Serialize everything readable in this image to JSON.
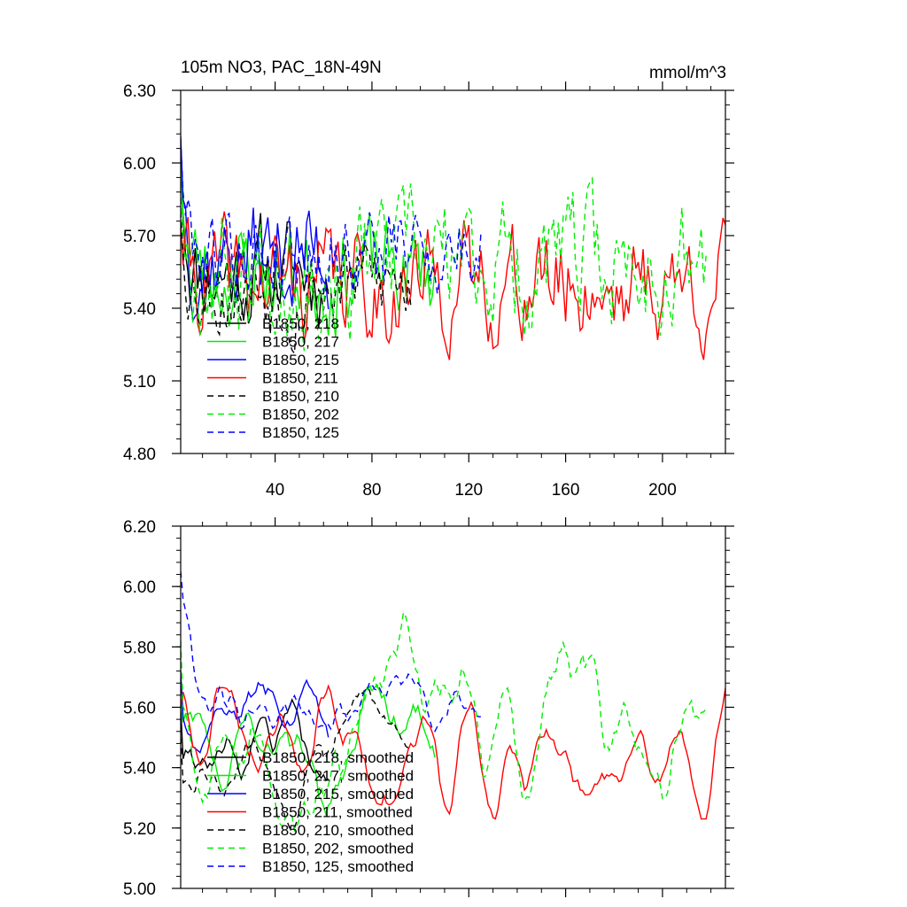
{
  "chart_data": [
    {
      "type": "line",
      "title": "105m NO3, PAC_18N-49N",
      "units_label": "mmol/m^3",
      "xlim": [
        1,
        226
      ],
      "ylim": [
        4.8,
        6.3
      ],
      "yticks": [
        "6.30",
        "6.00",
        "5.70",
        "5.40",
        "5.10",
        "4.80"
      ],
      "yticks_values": [
        6.3,
        6.0,
        5.7,
        5.4,
        5.1,
        4.8
      ],
      "xticks": [
        "40",
        "80",
        "120",
        "160",
        "200"
      ],
      "xticks_values": [
        40,
        80,
        120,
        160,
        200
      ],
      "series": [
        {
          "name": "B1850, 218",
          "label": "B1850, 218",
          "color": "#000000",
          "dash": "solid",
          "n": 62,
          "seed": 11,
          "start": 6.15,
          "mean": 5.55,
          "amp": 0.16,
          "lo": 5.02,
          "hi": 6.02
        },
        {
          "name": "B1850, 217",
          "label": "B1850, 217",
          "color": "#00ee00",
          "dash": "solid",
          "n": 106,
          "seed": 23,
          "start": 6.05,
          "mean": 5.55,
          "amp": 0.16,
          "lo": 4.88,
          "hi": 6.1
        },
        {
          "name": "B1850, 215",
          "label": "B1850, 215",
          "color": "#0000ff",
          "dash": "solid",
          "n": 62,
          "seed": 37,
          "start": 6.2,
          "mean": 5.62,
          "amp": 0.18,
          "lo": 5.0,
          "hi": 6.11
        },
        {
          "name": "B1850, 211",
          "label": "B1850, 211",
          "color": "#ff0000",
          "dash": "solid",
          "n": 226,
          "seed": 41,
          "start": 5.75,
          "mean": 5.5,
          "amp": 0.17,
          "lo": 5.08,
          "hi": 5.91
        },
        {
          "name": "B1850, 210",
          "label": "B1850, 210",
          "color": "#000000",
          "dash": "dashed",
          "n": 96,
          "seed": 53,
          "start": 5.8,
          "mean": 5.5,
          "amp": 0.15,
          "lo": 5.0,
          "hi": 5.84
        },
        {
          "name": "B1850, 202",
          "label": "B1850, 202",
          "color": "#00ee00",
          "dash": "dashed",
          "n": 218,
          "seed": 67,
          "start": 5.9,
          "mean": 5.58,
          "amp": 0.2,
          "lo": 4.95,
          "hi": 6.16
        },
        {
          "name": "B1850, 125",
          "label": "B1850, 125",
          "color": "#0000ff",
          "dash": "dashed",
          "n": 125,
          "seed": 79,
          "start": 6.1,
          "mean": 5.65,
          "amp": 0.14,
          "lo": 5.15,
          "hi": 6.1
        }
      ]
    },
    {
      "type": "line",
      "title": "",
      "units_label": "",
      "xlim": [
        1,
        226
      ],
      "ylim": [
        5.0,
        6.2
      ],
      "yticks": [
        "6.20",
        "6.00",
        "5.80",
        "5.60",
        "5.40",
        "5.20",
        "5.00"
      ],
      "yticks_values": [
        6.2,
        6.0,
        5.8,
        5.6,
        5.4,
        5.2,
        5.0
      ],
      "xticks": [],
      "xticks_values": [
        40,
        80,
        120,
        160,
        200
      ],
      "series": [
        {
          "name": "B1850, 218, smoothed",
          "label": "B1850, 218, smoothed",
          "color": "#000000",
          "dash": "solid",
          "n": 62,
          "seed": 11,
          "start": 5.6,
          "mean": 5.52,
          "amp": 0.13,
          "lo": 5.3,
          "hi": 5.89
        },
        {
          "name": "B1850, 217, smoothed",
          "label": "B1850, 217, smoothed",
          "color": "#00ee00",
          "dash": "solid",
          "n": 106,
          "seed": 23,
          "start": 5.62,
          "mean": 5.52,
          "amp": 0.14,
          "lo": 5.16,
          "hi": 5.8
        },
        {
          "name": "B1850, 215, smoothed",
          "label": "B1850, 215, smoothed",
          "color": "#0000ff",
          "dash": "solid",
          "n": 62,
          "seed": 37,
          "start": 5.72,
          "mean": 5.62,
          "amp": 0.1,
          "lo": 5.45,
          "hi": 5.84
        },
        {
          "name": "B1850, 211, smoothed",
          "label": "B1850, 211, smoothed",
          "color": "#ff0000",
          "dash": "solid",
          "n": 226,
          "seed": 41,
          "start": 5.6,
          "mean": 5.45,
          "amp": 0.13,
          "lo": 5.23,
          "hi": 5.79
        },
        {
          "name": "B1850, 210, smoothed",
          "label": "B1850, 210, smoothed",
          "color": "#000000",
          "dash": "dashed",
          "n": 96,
          "seed": 53,
          "start": 5.5,
          "mean": 5.52,
          "amp": 0.13,
          "lo": 5.2,
          "hi": 5.71
        },
        {
          "name": "B1850, 202, smoothed",
          "label": "B1850, 202, smoothed",
          "color": "#00ee00",
          "dash": "dashed",
          "n": 218,
          "seed": 67,
          "start": 5.82,
          "mean": 5.55,
          "amp": 0.17,
          "lo": 5.19,
          "hi": 5.94
        },
        {
          "name": "B1850, 125, smoothed",
          "label": "B1850, 125, smoothed",
          "color": "#0000ff",
          "dash": "dashed",
          "n": 125,
          "seed": 79,
          "start": 6.05,
          "mean": 5.65,
          "amp": 0.1,
          "lo": 5.48,
          "hi": 6.05
        }
      ]
    }
  ]
}
